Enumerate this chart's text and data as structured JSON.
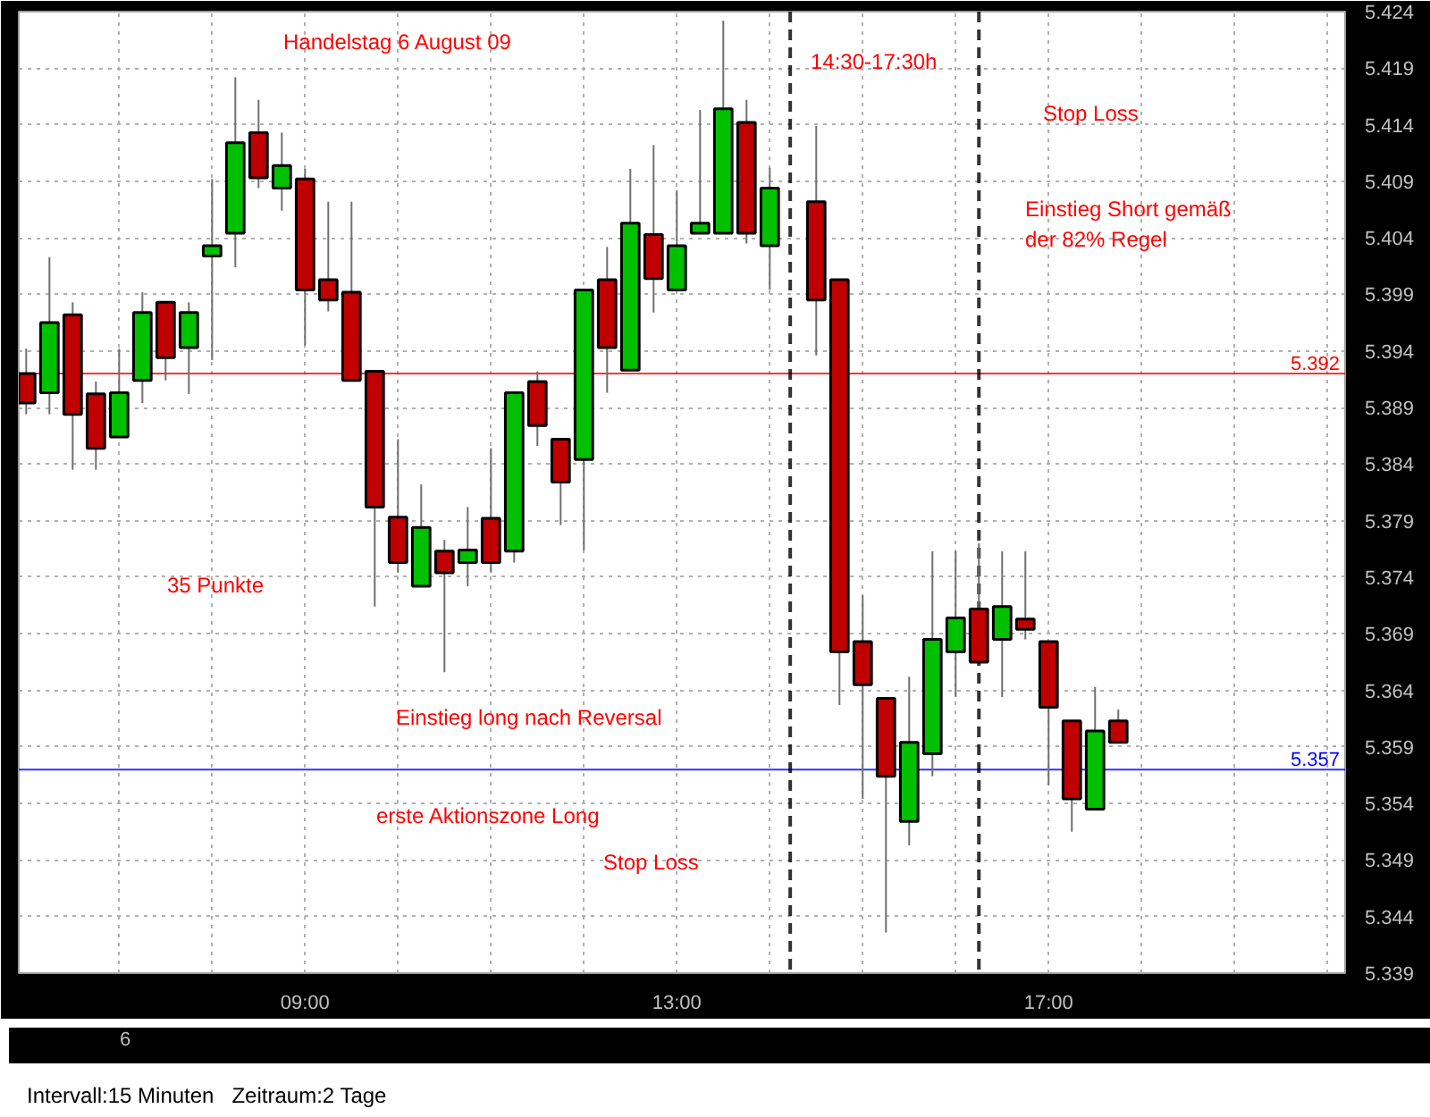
{
  "chart_data": {
    "type": "candlestick",
    "x": [
      6.0,
      6.25,
      6.5,
      6.75,
      7.0,
      7.25,
      7.5,
      7.75,
      8.0,
      8.25,
      8.5,
      8.75,
      9.0,
      9.25,
      9.5,
      9.75,
      10.0,
      10.25,
      10.5,
      10.75,
      11.0,
      11.25,
      11.5,
      11.75,
      12.0,
      12.25,
      12.5,
      12.75,
      13.0,
      13.25,
      13.5,
      13.75,
      14.0,
      14.5,
      14.75,
      15.0,
      15.25,
      15.5,
      15.75,
      16.0,
      16.25,
      16.5,
      16.75,
      17.0,
      17.25,
      17.5,
      17.75
    ],
    "ohlc": [
      [
        5.392,
        5.3942,
        5.3884,
        5.3894
      ],
      [
        5.3903,
        5.4023,
        5.3884,
        5.3965
      ],
      [
        5.3972,
        5.3983,
        5.3835,
        5.3884
      ],
      [
        5.3902,
        5.3913,
        5.3835,
        5.3854
      ],
      [
        5.3864,
        5.3942,
        5.3864,
        5.3903
      ],
      [
        5.3914,
        5.3992,
        5.3894,
        5.3974
      ],
      [
        5.3983,
        5.3983,
        5.3914,
        5.3934
      ],
      [
        5.3943,
        5.3983,
        5.3902,
        5.3974
      ],
      [
        5.4024,
        5.4092,
        5.3932,
        5.4033
      ],
      [
        5.4044,
        5.4182,
        5.4014,
        5.4124
      ],
      [
        5.4133,
        5.4162,
        5.4084,
        5.4093
      ],
      [
        5.4084,
        5.4133,
        5.4064,
        5.4104
      ],
      [
        5.4092,
        5.4101,
        5.3945,
        5.3994
      ],
      [
        5.4003,
        5.4072,
        5.3975,
        5.3985
      ],
      [
        5.3992,
        5.4072,
        5.3914,
        5.3914
      ],
      [
        5.3922,
        5.3922,
        5.3714,
        5.3802
      ],
      [
        5.3793,
        5.3862,
        5.3744,
        5.3753
      ],
      [
        5.3732,
        5.3822,
        5.3732,
        5.3784
      ],
      [
        5.3763,
        5.3773,
        5.3656,
        5.3744
      ],
      [
        5.3753,
        5.3802,
        5.3732,
        5.3764
      ],
      [
        5.3792,
        5.3854,
        5.3744,
        5.3753
      ],
      [
        5.3763,
        5.3903,
        5.3753,
        5.3903
      ],
      [
        5.3913,
        5.3922,
        5.3856,
        5.3874
      ],
      [
        5.3862,
        5.3862,
        5.3786,
        5.3824
      ],
      [
        5.3844,
        5.3994,
        5.3764,
        5.3994
      ],
      [
        5.4003,
        5.4032,
        5.3903,
        5.3943
      ],
      [
        5.3923,
        5.4101,
        5.3923,
        5.4053
      ],
      [
        5.4043,
        5.4122,
        5.3974,
        5.4004
      ],
      [
        5.3994,
        5.4082,
        5.3994,
        5.4033
      ],
      [
        5.4044,
        5.4153,
        5.4044,
        5.4053
      ],
      [
        5.4044,
        5.4232,
        5.4044,
        5.4154
      ],
      [
        5.4142,
        5.4162,
        5.4035,
        5.4044
      ],
      [
        5.4033,
        5.4102,
        5.3994,
        5.4084
      ],
      [
        5.4072,
        5.4139,
        5.3936,
        5.3985
      ],
      [
        5.4003,
        5.4003,
        5.3627,
        5.3674
      ],
      [
        5.3683,
        5.3724,
        5.3544,
        5.3645
      ],
      [
        5.3633,
        5.3633,
        5.3426,
        5.3564
      ],
      [
        5.3524,
        5.3652,
        5.3503,
        5.3594
      ],
      [
        5.3584,
        5.3763,
        5.3564,
        5.3685
      ],
      [
        5.3674,
        5.3763,
        5.3634,
        5.3704
      ],
      [
        5.3712,
        5.377,
        5.3665,
        5.3665
      ],
      [
        5.3685,
        5.3763,
        5.3634,
        5.3714
      ],
      [
        5.3703,
        5.3763,
        5.3685,
        5.3694
      ],
      [
        5.3683,
        5.3683,
        5.3556,
        5.3625
      ],
      [
        5.3613,
        5.3613,
        5.3515,
        5.3544
      ],
      [
        5.3535,
        5.3643,
        5.3535,
        5.3604
      ],
      [
        5.3613,
        5.3623,
        5.3594,
        5.3594
      ]
    ],
    "colors": [
      "#c00000",
      "#00c000",
      "#c00000",
      "#c00000",
      "#00c000",
      "#00c000",
      "#c00000",
      "#00c000",
      "#00c000",
      "#00c000",
      "#c00000",
      "#00c000",
      "#c00000",
      "#c00000",
      "#c00000",
      "#c00000",
      "#c00000",
      "#00c000",
      "#c00000",
      "#00c000",
      "#c00000",
      "#00c000",
      "#c00000",
      "#c00000",
      "#00c000",
      "#c00000",
      "#00c000",
      "#c00000",
      "#00c000",
      "#00c000",
      "#00c000",
      "#c00000",
      "#00c000",
      "#c00000",
      "#c00000",
      "#c00000",
      "#c00000",
      "#00c000",
      "#00c000",
      "#00c000",
      "#c00000",
      "#00c000",
      "#c00000",
      "#c00000",
      "#c00000",
      "#00c000",
      "#c00000"
    ],
    "xlim": [
      5.92,
      20.19
    ],
    "xticks": [
      {
        "value": 7,
        "label": null
      },
      {
        "value": 8,
        "label": null
      },
      {
        "value": 9,
        "label": "09:00"
      },
      {
        "value": 10,
        "label": null
      },
      {
        "value": 11,
        "label": null
      },
      {
        "value": 12,
        "label": null
      },
      {
        "value": 13,
        "label": "13:00"
      },
      {
        "value": 14,
        "label": null
      },
      {
        "value": 15,
        "label": null
      },
      {
        "value": 16,
        "label": null
      },
      {
        "value": 17,
        "label": "17:00"
      },
      {
        "value": 18,
        "label": null
      },
      {
        "value": 19,
        "label": null
      },
      {
        "value": 20,
        "label": null
      }
    ],
    "ylim": [
      5.339,
      5.424
    ],
    "yticks": [
      5.339,
      5.344,
      5.349,
      5.354,
      5.359,
      5.364,
      5.369,
      5.374,
      5.379,
      5.384,
      5.389,
      5.394,
      5.399,
      5.404,
      5.409,
      5.414,
      5.419,
      5.424
    ],
    "grid": true,
    "ref_lines": [
      {
        "axis": "y",
        "value": 5.392,
        "label": "5.392",
        "color": "#ff0000"
      },
      {
        "axis": "y",
        "value": 5.357,
        "label": "5.357",
        "color": "#0000ff"
      },
      {
        "axis": "x",
        "value": 14.22,
        "label": null,
        "color": "#000000",
        "line_style": "dashed"
      },
      {
        "axis": "x",
        "value": 16.25,
        "label": null,
        "color": "#000000",
        "line_style": "dashed"
      }
    ],
    "annotations": [
      "Handelstag 6 August 09",
      "14:30-17:30h",
      "Stop Loss",
      "Einstieg Short gemäß\nder 82% Regel",
      "35 Punkte",
      "Einstieg long nach Reversal",
      "erste Aktionszone Long",
      "Stop Loss",
      "6",
      "Intervall:15 Minuten   Zeitraum:2 Tage"
    ]
  }
}
